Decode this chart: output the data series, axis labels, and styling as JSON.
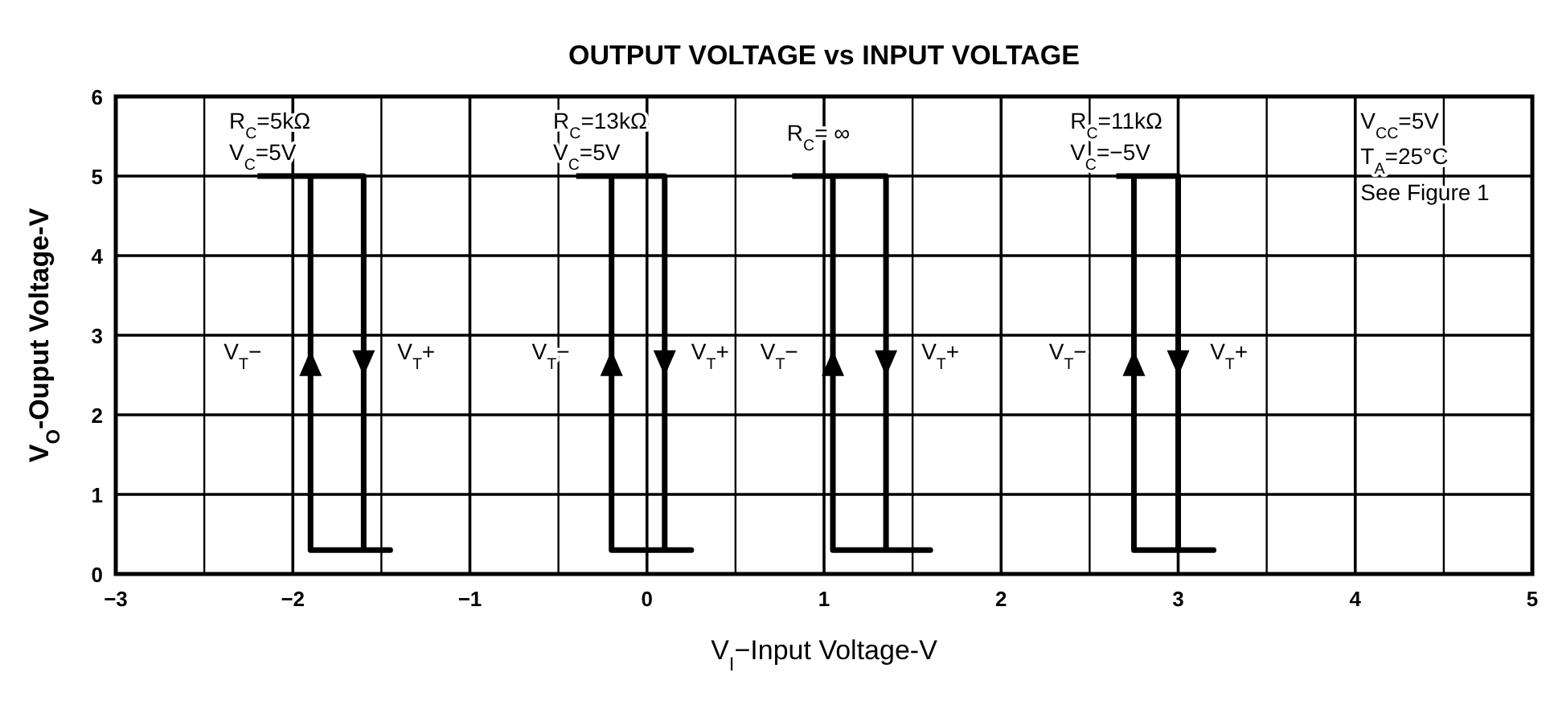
{
  "chart_data": {
    "type": "line",
    "title": "OUTPUT VOLTAGE vs INPUT VOLTAGE",
    "xlabel": "V$_{I}$−Input Voltage-V",
    "ylabel": "V$_{O}$-Ouput Voltage-V",
    "xlim": [
      -3,
      5
    ],
    "ylim": [
      0,
      6
    ],
    "xticks": [
      -3,
      {
        "value": -2.5,
        "label": null
      },
      -2,
      {
        "value": -1.5,
        "label": null
      },
      -1,
      {
        "value": -0.5,
        "label": null
      },
      0,
      {
        "value": 0.5,
        "label": null
      },
      1,
      {
        "value": 1.5,
        "label": null
      },
      2,
      {
        "value": 2.5,
        "label": null
      },
      3,
      {
        "value": 3.5,
        "label": null
      },
      4,
      {
        "value": 4.5,
        "label": null
      },
      5
    ],
    "yticks": [
      0,
      1,
      2,
      3,
      4,
      5,
      6
    ],
    "grid": true,
    "marker": "none",
    "line_style": "solid",
    "series": [
      {
        "color": "#000000",
        "x": [
          -2.2,
          -1.6,
          -1.6,
          -1.45,
          -1.9,
          -1.9
        ],
        "values": [
          5,
          5,
          0.3,
          0.3,
          0.3,
          5
        ]
      },
      {
        "color": "#000000",
        "x": [
          -0.4,
          0.1,
          0.1,
          0.25,
          -0.2,
          -0.2
        ],
        "values": [
          5,
          5,
          0.3,
          0.3,
          0.3,
          5
        ]
      },
      {
        "color": "#000000",
        "x": [
          0.82,
          1.35,
          1.35,
          1.6,
          1.05,
          1.05
        ],
        "values": [
          5,
          5,
          0.3,
          0.3,
          0.3,
          5
        ]
      },
      {
        "color": "#000000",
        "x": [
          2.65,
          3.0,
          3.0,
          3.2,
          2.75,
          2.75
        ],
        "values": [
          5,
          5,
          0.3,
          0.3,
          0.3,
          5
        ]
      }
    ],
    "annotations": [
      "R$_{C}$=5kΩ",
      "V$_{C}$=5V",
      "R$_{C}$=13kΩ",
      "V$_{C}$=5V",
      "R$_{C}$= ∞",
      "R$_{C}$=11kΩ",
      "V$_{C}$=−5V",
      "V$_{CC}$=5V",
      "T$_{A}$=25°C",
      "See Figure 1",
      "V$_{T}$−",
      "V$_{T}$+",
      "V$_{T}$−",
      "V$_{T}$+",
      "V$_{T}$−",
      "V$_{T}$+",
      "V$_{T}$−",
      "V$_{T}$+"
    ]
  }
}
